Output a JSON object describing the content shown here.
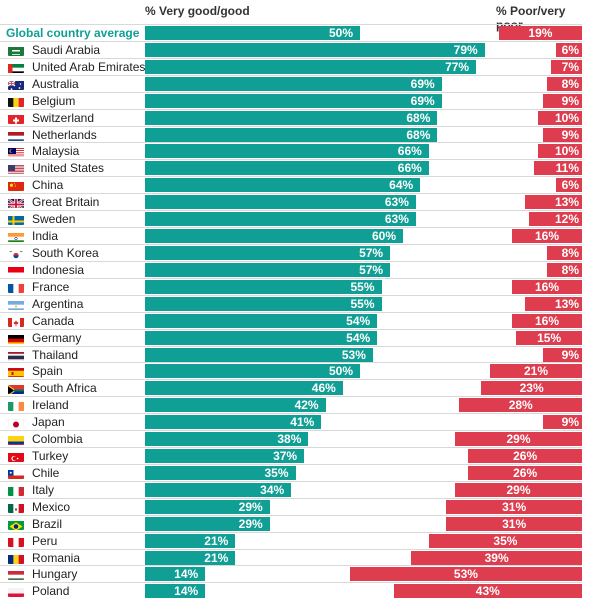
{
  "headers": {
    "good": "% Very good/good",
    "poor": "% Poor/very poor"
  },
  "colors": {
    "good": "#109f95",
    "poor": "#dd3d4e",
    "average_label": "#109f95"
  },
  "chart_data": {
    "type": "bar",
    "orientation": "horizontal",
    "series": [
      {
        "name": "% Very good/good",
        "color": "#109f95",
        "values": [
          50,
          79,
          77,
          69,
          69,
          68,
          68,
          66,
          66,
          64,
          63,
          63,
          60,
          57,
          57,
          55,
          55,
          54,
          54,
          53,
          50,
          46,
          42,
          41,
          38,
          37,
          35,
          34,
          29,
          29,
          21,
          21,
          14,
          14
        ]
      },
      {
        "name": "% Poor/very poor",
        "color": "#dd3d4e",
        "values": [
          19,
          6,
          7,
          8,
          9,
          10,
          9,
          10,
          11,
          6,
          13,
          12,
          16,
          8,
          8,
          16,
          13,
          16,
          15,
          9,
          21,
          23,
          28,
          9,
          29,
          26,
          26,
          29,
          31,
          31,
          35,
          39,
          53,
          43
        ]
      }
    ],
    "categories": [
      "Global country average",
      "Saudi Arabia",
      "United Arab Emirates",
      "Australia",
      "Belgium",
      "Switzerland",
      "Netherlands",
      "Malaysia",
      "United States",
      "China",
      "Great Britain",
      "Sweden",
      "India",
      "South Korea",
      "Indonesia",
      "France",
      "Argentina",
      "Canada",
      "Germany",
      "Thailand",
      "Spain",
      "South Africa",
      "Ireland",
      "Japan",
      "Colombia",
      "Turkey",
      "Chile",
      "Italy",
      "Mexico",
      "Brazil",
      "Peru",
      "Romania",
      "Hungary",
      "Poland"
    ],
    "flags": [
      "",
      "sa",
      "ae",
      "au",
      "be",
      "ch",
      "nl",
      "my",
      "us",
      "cn",
      "gb",
      "se",
      "in",
      "kr",
      "id",
      "fr",
      "ar",
      "ca",
      "de",
      "th",
      "es",
      "za",
      "ie",
      "jp",
      "co",
      "tr",
      "cl",
      "it",
      "mx",
      "br",
      "pe",
      "ro",
      "hu",
      "pl"
    ],
    "value_labels_good": [
      "50%",
      "79%",
      "77%",
      "69%",
      "69%",
      "68%",
      "68%",
      "66%",
      "66%",
      "64%",
      "63%",
      "63%",
      "60%",
      "57%",
      "57%",
      "55%",
      "55%",
      "54%",
      "54%",
      "53%",
      "50%",
      "46%",
      "42%",
      "41%",
      "38%",
      "37%",
      "35%",
      "34%",
      "29%",
      "29%",
      "21%",
      "21%",
      "14%",
      "14%"
    ],
    "value_labels_poor": [
      "19%",
      "6%",
      "7%",
      "8%",
      "9%",
      "10%",
      "9%",
      "10%",
      "11%",
      "6%",
      "13%",
      "12%",
      "16%",
      "8%",
      "8%",
      "16%",
      "13%",
      "16%",
      "15%",
      "9%",
      "21%",
      "23%",
      "28%",
      "9%",
      "29%",
      "26%",
      "26%",
      "29%",
      "31%",
      "31%",
      "35%",
      "39%",
      "53%",
      "43%"
    ]
  }
}
